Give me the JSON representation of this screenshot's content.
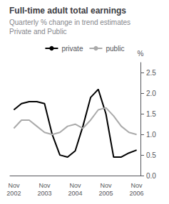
{
  "chart_data": {
    "type": "line",
    "title": "Full-time adult total earnings",
    "subtitle": "Quarterly % change in trend estimates\nPrivate and Public",
    "ylabel": "%",
    "categories": [
      "Nov\n2002",
      null,
      null,
      null,
      "Nov\n2003",
      null,
      null,
      null,
      "Nov\n2004",
      null,
      null,
      null,
      "Nov\n2005",
      null,
      null,
      null,
      "Nov\n2006"
    ],
    "series": [
      {
        "name": "private",
        "color": "#000000",
        "values": [
          1.6,
          1.75,
          1.8,
          1.8,
          1.75,
          1.0,
          0.5,
          0.45,
          0.6,
          1.2,
          1.9,
          2.1,
          1.5,
          0.45,
          0.45,
          0.55,
          0.62
        ]
      },
      {
        "name": "public",
        "color": "#aaaaaa",
        "values": [
          1.15,
          1.35,
          1.35,
          1.2,
          1.05,
          1.0,
          1.05,
          1.2,
          1.25,
          1.15,
          1.35,
          1.6,
          1.65,
          1.45,
          1.2,
          1.05,
          1.0
        ]
      }
    ],
    "ylim": [
      0,
      2.75
    ],
    "yticks": [
      {
        "value": 0,
        "label": "0.0"
      },
      0.5,
      {
        "value": 1.0,
        "label": "1.0"
      },
      1.5,
      {
        "value": 2.0,
        "label": "2.0"
      },
      2.5
    ],
    "grid": false,
    "legend": "top"
  }
}
